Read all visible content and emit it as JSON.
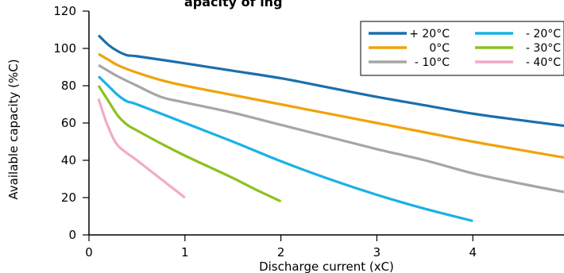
{
  "chart_data": {
    "type": "line",
    "title": "",
    "title_fragment_visible": "apacity    of         ing",
    "xlabel": "Discharge current (xC)",
    "ylabel": "Available capacity (%C)",
    "xlim": [
      0,
      4.95
    ],
    "ylim": [
      0,
      120
    ],
    "x_ticks": [
      0,
      1,
      2,
      3,
      4
    ],
    "y_ticks": [
      0,
      20,
      40,
      60,
      80,
      100,
      120
    ],
    "grid": false,
    "legend_position": "top-right",
    "series": [
      {
        "name": "+ 20°C",
        "color": "#1a6fad",
        "points": [
          [
            0.1,
            107
          ],
          [
            0.2,
            102
          ],
          [
            0.3,
            98.5
          ],
          [
            0.4,
            96.3
          ],
          [
            0.5,
            95.8
          ],
          [
            1,
            92
          ],
          [
            1.5,
            88
          ],
          [
            2,
            84
          ],
          [
            2.5,
            79
          ],
          [
            3,
            74
          ],
          [
            3.5,
            69.5
          ],
          [
            4,
            65
          ],
          [
            4.5,
            61.5
          ],
          [
            4.95,
            58.5
          ]
        ]
      },
      {
        "name": "0°C",
        "color": "#f0a30a",
        "points": [
          [
            0.1,
            97
          ],
          [
            0.2,
            94
          ],
          [
            0.3,
            91
          ],
          [
            0.5,
            87
          ],
          [
            0.75,
            83
          ],
          [
            1,
            80
          ],
          [
            1.5,
            75
          ],
          [
            2,
            70
          ],
          [
            2.5,
            65
          ],
          [
            3,
            60
          ],
          [
            3.5,
            55
          ],
          [
            4,
            50
          ],
          [
            4.5,
            45.5
          ],
          [
            4.95,
            41.5
          ]
        ]
      },
      {
        "name": "- 10°C",
        "color": "#a6a6a6",
        "points": [
          [
            0.1,
            91
          ],
          [
            0.2,
            88
          ],
          [
            0.3,
            85
          ],
          [
            0.5,
            80
          ],
          [
            0.75,
            74
          ],
          [
            1,
            71
          ],
          [
            1.5,
            65.5
          ],
          [
            2,
            59
          ],
          [
            2.5,
            52.5
          ],
          [
            3,
            46
          ],
          [
            3.5,
            40
          ],
          [
            4,
            33
          ],
          [
            4.5,
            27.5
          ],
          [
            4.95,
            23
          ]
        ]
      },
      {
        "name": "- 20°C",
        "color": "#1ab1e6",
        "points": [
          [
            0.1,
            85
          ],
          [
            0.2,
            80
          ],
          [
            0.3,
            75
          ],
          [
            0.4,
            71.5
          ],
          [
            0.5,
            70
          ],
          [
            1,
            60
          ],
          [
            1.5,
            50
          ],
          [
            2,
            39.5
          ],
          [
            2.5,
            30
          ],
          [
            3,
            21.5
          ],
          [
            3.5,
            14
          ],
          [
            4,
            7.5
          ]
        ]
      },
      {
        "name": "- 30°C",
        "color": "#8dc21f",
        "points": [
          [
            0.1,
            80
          ],
          [
            0.2,
            72
          ],
          [
            0.3,
            64
          ],
          [
            0.4,
            59
          ],
          [
            0.5,
            56
          ],
          [
            0.75,
            49
          ],
          [
            1,
            42.5
          ],
          [
            1.25,
            36.5
          ],
          [
            1.5,
            30.5
          ],
          [
            1.75,
            24
          ],
          [
            2,
            18
          ]
        ]
      },
      {
        "name": "- 40°C",
        "color": "#f4a9c8",
        "points": [
          [
            0.1,
            73
          ],
          [
            0.15,
            65
          ],
          [
            0.2,
            58
          ],
          [
            0.3,
            48
          ],
          [
            0.5,
            40
          ],
          [
            0.75,
            30
          ],
          [
            1,
            20
          ]
        ]
      }
    ]
  }
}
